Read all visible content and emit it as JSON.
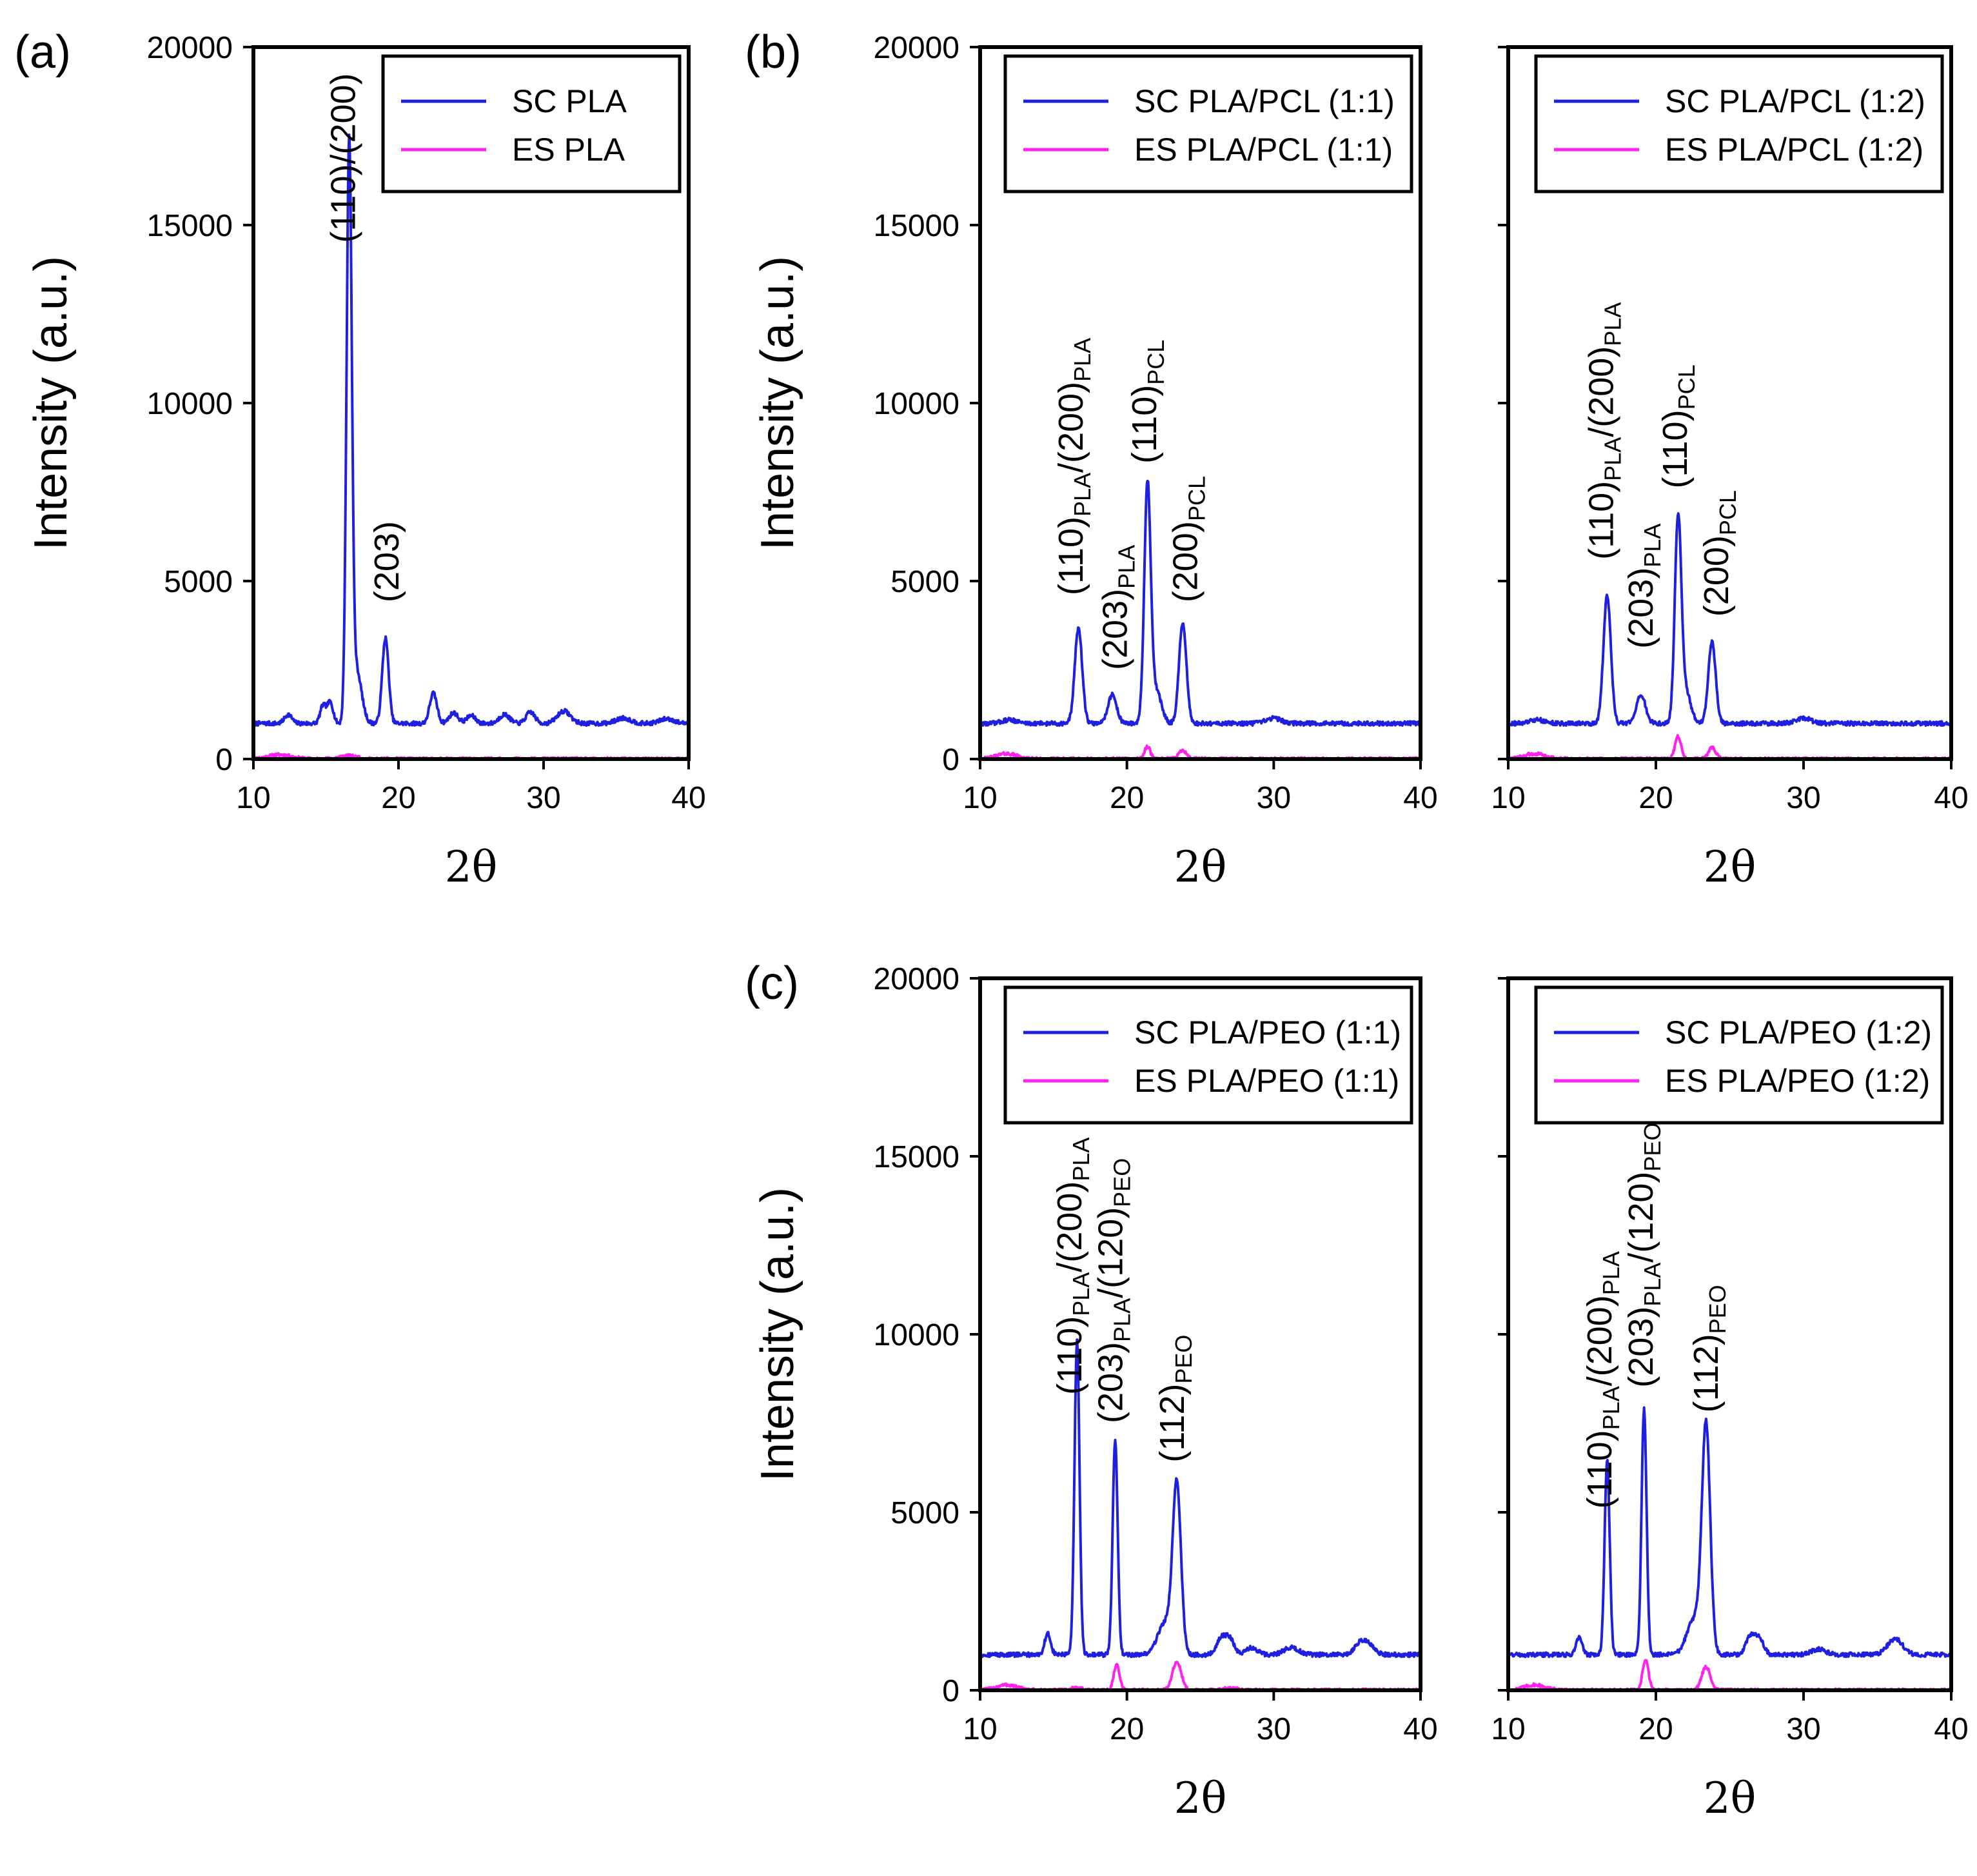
{
  "figure": {
    "panel_letters": [
      "(a)",
      "(b)",
      "(c)"
    ],
    "colors": {
      "SC": "#1f1fe0",
      "ES": "#ff22ee",
      "axis": "#000000"
    }
  },
  "chart_data": [
    {
      "id": "a",
      "type": "line",
      "panel_label": "(a)",
      "xlabel": "2θ",
      "ylabel": "Intensity (a.u.)",
      "xlim": [
        10,
        40
      ],
      "ylim": [
        0,
        20000
      ],
      "xticks": [
        10,
        20,
        30,
        40
      ],
      "yticks": [
        0,
        5000,
        10000,
        15000,
        20000
      ],
      "legend": [
        "SC PLA",
        "ES PLA"
      ],
      "sc": {
        "baseline": 1000,
        "peaks": [
          [
            12.4,
            250,
            0.25
          ],
          [
            14.8,
            500,
            0.2
          ],
          [
            15.3,
            600,
            0.2
          ],
          [
            16.6,
            16000,
            0.18
          ],
          [
            17.1,
            1500,
            0.35
          ],
          [
            19.1,
            2400,
            0.22
          ],
          [
            22.4,
            850,
            0.25
          ],
          [
            23.8,
            300,
            0.3
          ],
          [
            25.0,
            220,
            0.3
          ],
          [
            27.3,
            250,
            0.35
          ],
          [
            29.1,
            320,
            0.3
          ],
          [
            31.4,
            350,
            0.45
          ],
          [
            35.5,
            150,
            0.5
          ],
          [
            38.5,
            130,
            0.5
          ]
        ]
      },
      "es": {
        "baseline": 0,
        "peaks": [
          [
            11.8,
            120,
            0.8
          ],
          [
            16.5,
            90,
            0.6
          ]
        ]
      },
      "annotations": [
        {
          "x": 16.2,
          "y": 14500,
          "parts": [
            {
              "t": "(110)/(200)"
            }
          ]
        },
        {
          "x": 19.2,
          "y": 4400,
          "parts": [
            {
              "t": "(203)"
            }
          ]
        }
      ]
    },
    {
      "id": "b1",
      "type": "line",
      "panel_label": "(b)",
      "xlabel": "2θ",
      "ylabel": "Intensity (a.u.)",
      "xlim": [
        10,
        40
      ],
      "ylim": [
        0,
        20000
      ],
      "xticks": [
        10,
        20,
        30,
        40
      ],
      "yticks": [
        0,
        5000,
        10000,
        15000,
        20000
      ],
      "legend": [
        "SC PLA/PCL (1:1)",
        "ES PLA/PCL (1:1)"
      ],
      "sc": {
        "baseline": 1000,
        "peaks": [
          [
            16.7,
            2700,
            0.25
          ],
          [
            19.0,
            800,
            0.3
          ],
          [
            21.4,
            6600,
            0.22
          ],
          [
            22.0,
            900,
            0.35
          ],
          [
            23.8,
            2800,
            0.25
          ],
          [
            30.0,
            150,
            0.5
          ],
          [
            12.0,
            100,
            0.5
          ]
        ]
      },
      "es": {
        "baseline": 0,
        "peaks": [
          [
            11.8,
            150,
            0.7
          ],
          [
            21.4,
            350,
            0.2
          ],
          [
            23.8,
            260,
            0.25
          ]
        ]
      },
      "annotations": [
        {
          "x": 16.2,
          "y": 4600,
          "parts": [
            {
              "t": "(110)"
            },
            {
              "t": "PLA",
              "sub": true
            },
            {
              "t": "/(200)"
            },
            {
              "t": "PLA",
              "sub": true
            }
          ]
        },
        {
          "x": 19.2,
          "y": 2500,
          "parts": [
            {
              "t": "(203)"
            },
            {
              "t": "PLA",
              "sub": true
            }
          ]
        },
        {
          "x": 21.2,
          "y": 8300,
          "parts": [
            {
              "t": "(110)"
            },
            {
              "t": "PCL",
              "sub": true
            }
          ]
        },
        {
          "x": 24.0,
          "y": 4400,
          "parts": [
            {
              "t": "(200)"
            },
            {
              "t": "PCL",
              "sub": true
            }
          ]
        }
      ]
    },
    {
      "id": "b2",
      "type": "line",
      "panel_label": "",
      "xlabel": "2θ",
      "ylabel": "",
      "xlim": [
        10,
        40
      ],
      "ylim": [
        0,
        20000
      ],
      "xticks": [
        10,
        20,
        30,
        40
      ],
      "yticks": [
        0,
        5000,
        10000,
        15000,
        20000
      ],
      "legend": [
        "SC PLA/PCL (1:2)",
        "ES PLA/PCL (1:2)"
      ],
      "sc": {
        "baseline": 1000,
        "peaks": [
          [
            16.7,
            3600,
            0.25
          ],
          [
            19.0,
            800,
            0.3
          ],
          [
            21.5,
            5600,
            0.22
          ],
          [
            22.0,
            900,
            0.35
          ],
          [
            23.8,
            2300,
            0.25
          ],
          [
            30.0,
            150,
            0.5
          ],
          [
            12.0,
            100,
            0.5
          ]
        ]
      },
      "es": {
        "baseline": 0,
        "peaks": [
          [
            11.8,
            150,
            0.7
          ],
          [
            21.5,
            650,
            0.2
          ],
          [
            23.8,
            320,
            0.25
          ]
        ]
      },
      "annotations": [
        {
          "x": 16.3,
          "y": 5600,
          "parts": [
            {
              "t": "(110)"
            },
            {
              "t": "PLA",
              "sub": true
            },
            {
              "t": "/(200)"
            },
            {
              "t": "PLA",
              "sub": true
            }
          ]
        },
        {
          "x": 19.0,
          "y": 3100,
          "parts": [
            {
              "t": "(203)"
            },
            {
              "t": "PLA",
              "sub": true
            }
          ]
        },
        {
          "x": 21.3,
          "y": 7600,
          "parts": [
            {
              "t": "(110)"
            },
            {
              "t": "PCL",
              "sub": true
            }
          ]
        },
        {
          "x": 24.1,
          "y": 4000,
          "parts": [
            {
              "t": "(200)"
            },
            {
              "t": "PCL",
              "sub": true
            }
          ]
        }
      ]
    },
    {
      "id": "c1",
      "type": "line",
      "panel_label": "(c)",
      "xlabel": "2θ",
      "ylabel": "Intensity (a.u.)",
      "xlim": [
        10,
        40
      ],
      "ylim": [
        0,
        20000
      ],
      "xticks": [
        10,
        20,
        30,
        40
      ],
      "yticks": [
        0,
        5000,
        10000,
        15000,
        20000
      ],
      "legend": [
        "SC PLA/PEO (1:1)",
        "ES PLA/PEO (1:1)"
      ],
      "sc": {
        "baseline": 1000,
        "peaks": [
          [
            14.6,
            600,
            0.2
          ],
          [
            16.6,
            8800,
            0.17
          ],
          [
            19.2,
            6000,
            0.17
          ],
          [
            22.6,
            900,
            0.5
          ],
          [
            23.4,
            4700,
            0.28
          ],
          [
            26.4,
            450,
            0.3
          ],
          [
            27.0,
            450,
            0.3
          ],
          [
            28.5,
            200,
            0.4
          ],
          [
            31.2,
            200,
            0.5
          ],
          [
            35.9,
            300,
            0.4
          ],
          [
            36.5,
            250,
            0.4
          ]
        ]
      },
      "es": {
        "baseline": 0,
        "peaks": [
          [
            11.8,
            150,
            0.7
          ],
          [
            16.6,
            80,
            0.3
          ],
          [
            19.3,
            700,
            0.2
          ],
          [
            23.4,
            800,
            0.3
          ],
          [
            27.0,
            60,
            0.5
          ]
        ]
      },
      "annotations": [
        {
          "x": 16.1,
          "y": 8300,
          "parts": [
            {
              "t": "(110)"
            },
            {
              "t": "PLA",
              "sub": true
            },
            {
              "t": "/(200)"
            },
            {
              "t": "PLA",
              "sub": true
            }
          ]
        },
        {
          "x": 18.9,
          "y": 7500,
          "parts": [
            {
              "t": "(203)"
            },
            {
              "t": "PLA",
              "sub": true
            },
            {
              "t": "/(120)"
            },
            {
              "t": "PEO",
              "sub": true
            }
          ]
        },
        {
          "x": 23.1,
          "y": 6400,
          "parts": [
            {
              "t": "(112)"
            },
            {
              "t": "PEO",
              "sub": true
            }
          ]
        }
      ]
    },
    {
      "id": "c2",
      "type": "line",
      "panel_label": "",
      "xlabel": "2θ",
      "ylabel": "",
      "xlim": [
        10,
        40
      ],
      "ylim": [
        0,
        20000
      ],
      "xticks": [
        10,
        20,
        30,
        40
      ],
      "yticks": [
        0,
        5000,
        10000,
        15000,
        20000
      ],
      "legend": [
        "SC PLA/PEO (1:2)",
        "ES PLA/PEO (1:2)"
      ],
      "sc": {
        "baseline": 1000,
        "peaks": [
          [
            14.8,
            500,
            0.2
          ],
          [
            16.7,
            5500,
            0.17
          ],
          [
            19.2,
            6900,
            0.17
          ],
          [
            22.6,
            1000,
            0.5
          ],
          [
            23.4,
            6300,
            0.28
          ],
          [
            26.4,
            500,
            0.3
          ],
          [
            27.0,
            450,
            0.3
          ],
          [
            31.0,
            150,
            0.5
          ],
          [
            36.2,
            450,
            0.5
          ]
        ]
      },
      "es": {
        "baseline": 0,
        "peaks": [
          [
            11.8,
            150,
            0.7
          ],
          [
            19.3,
            850,
            0.2
          ],
          [
            23.4,
            650,
            0.3
          ]
        ]
      },
      "annotations": [
        {
          "x": 16.2,
          "y": 5100,
          "parts": [
            {
              "t": "(110)"
            },
            {
              "t": "PLA",
              "sub": true
            },
            {
              "t": "/(200)"
            },
            {
              "t": "PLA",
              "sub": true
            }
          ]
        },
        {
          "x": 19.0,
          "y": 8500,
          "parts": [
            {
              "t": "(203)"
            },
            {
              "t": "PLA",
              "sub": true
            },
            {
              "t": "/(120)"
            },
            {
              "t": "PEO",
              "sub": true
            }
          ]
        },
        {
          "x": 23.4,
          "y": 7800,
          "parts": [
            {
              "t": "(112)"
            },
            {
              "t": "PEO",
              "sub": true
            }
          ]
        }
      ]
    }
  ]
}
